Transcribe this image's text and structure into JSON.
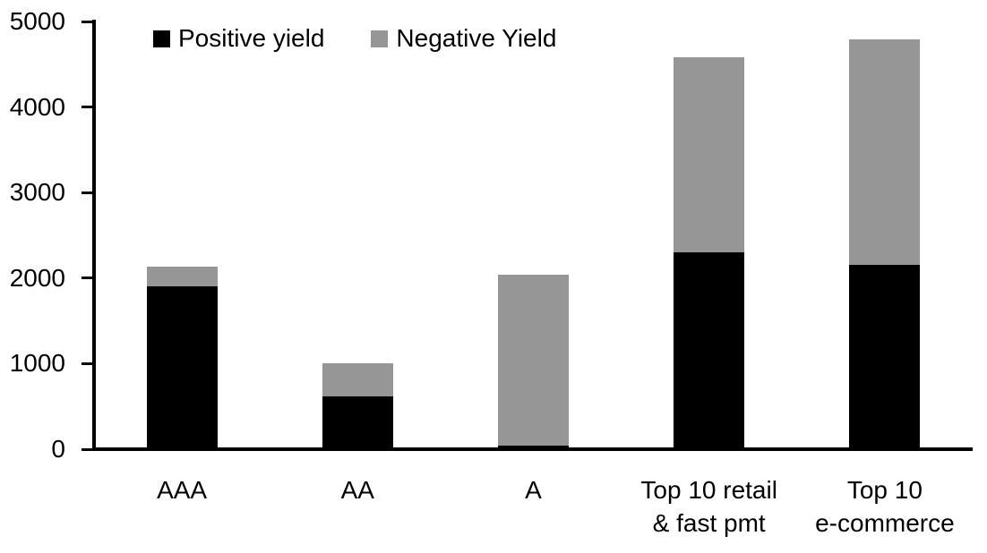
{
  "chart_data": {
    "type": "bar",
    "stacked": true,
    "title": "",
    "xlabel": "",
    "ylabel": "",
    "categories": [
      "AAA",
      "AA",
      "A",
      "Top 10 retail\n& fast pmt",
      "Top 10\ne-commerce"
    ],
    "series": [
      {
        "name": "Positive yield",
        "color": "#000000",
        "values": [
          1900,
          620,
          45,
          2300,
          2150
        ]
      },
      {
        "name": "Negative Yield",
        "color": "#969696",
        "values": [
          230,
          385,
          1995,
          2280,
          2640
        ]
      }
    ],
    "ylim": [
      0,
      5000
    ],
    "yticks": [
      0,
      1000,
      2000,
      3000,
      4000,
      5000
    ],
    "grid": false,
    "legend_position": "top"
  },
  "colors": {
    "axis": "#000000",
    "text": "#000000",
    "background": "#ffffff"
  }
}
